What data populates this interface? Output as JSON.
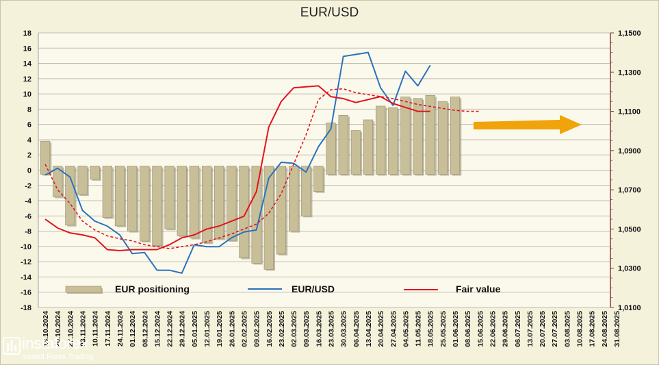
{
  "chart_data": {
    "type": "bar",
    "title": "EUR/USD",
    "x_labels": [
      "13.10.2024",
      "20.10.2024",
      "27.10.2024",
      "03.11.2024",
      "10.11.2024",
      "17.11.2024",
      "24.11.2024",
      "01.12.2024",
      "08.12.2024",
      "15.12.2024",
      "22.12.2024",
      "29.12.2024",
      "05.01.2025",
      "12.01.2025",
      "19.01.2025",
      "26.01.2025",
      "02.02.2025",
      "09.02.2025",
      "16.02.2025",
      "23.02.2025",
      "02.03.2025",
      "09.03.2025",
      "16.03.2025",
      "23.03.2025",
      "30.03.2025",
      "06.04.2025",
      "13.04.2025",
      "20.04.2025",
      "27.04.2025",
      "04.05.2025",
      "11.05.2025",
      "18.05.2025",
      "25.05.2025",
      "01.06.2025",
      "08.06.2025",
      "15.06.2025",
      "22.06.2025",
      "29.06.2025",
      "06.07.2025",
      "13.07.2025",
      "20.07.2025",
      "27.07.2025",
      "03.08.2025",
      "10.08.2025",
      "17.08.2025",
      "24.08.2025",
      "31.08.2025"
    ],
    "y_left": {
      "min": -18,
      "max": 18,
      "step": 2,
      "ticks": [
        "18",
        "16",
        "14",
        "12",
        "10",
        "8",
        "6",
        "4",
        "2",
        "0",
        "-2",
        "-4",
        "-6",
        "-8",
        "-10",
        "-12",
        "-14",
        "-16",
        "-18"
      ]
    },
    "y_right": {
      "min": 1.01,
      "max": 1.15,
      "ticks": [
        "1,1500",
        "1,1300",
        "1,1100",
        "1,0900",
        "1,0700",
        "1,0500",
        "1,0300",
        "1,0100"
      ],
      "tick_values": [
        1.15,
        1.13,
        1.11,
        1.09,
        1.07,
        1.05,
        1.03,
        1.01
      ]
    },
    "grid": "horizontal",
    "legend": "bottom",
    "series": [
      {
        "name": "EUR positioning",
        "kind": "bar",
        "axis": "left",
        "color": "#c8bf98",
        "values": [
          3.8,
          -3.5,
          -7.2,
          -3.2,
          -1.2,
          -6.2,
          -7.3,
          -8.0,
          -9.3,
          -9.9,
          -7.7,
          -8.6,
          -8.9,
          -9.5,
          -9.0,
          -9.2,
          -11.5,
          -12.2,
          -13.0,
          -11.0,
          -8.0,
          -6.0,
          -2.8,
          6.2,
          7.2,
          5.2,
          6.6,
          8.4,
          8.2,
          9.6,
          9.4,
          9.8,
          9.0,
          9.6
        ]
      },
      {
        "name": "EUR/USD",
        "kind": "line",
        "axis": "right",
        "color": "#2a72be",
        "values": [
          1.0775,
          1.081,
          1.0765,
          1.0595,
          1.054,
          1.0515,
          1.047,
          1.0375,
          1.038,
          1.029,
          1.029,
          1.0275,
          1.042,
          1.041,
          1.041,
          1.0455,
          1.0485,
          1.0495,
          1.076,
          1.084,
          1.0835,
          1.079,
          1.092,
          1.101,
          1.138,
          1.139,
          1.14,
          1.122,
          1.113,
          1.1305,
          1.123,
          1.1335
        ]
      },
      {
        "name": "Fair value",
        "kind": "line",
        "axis": "right",
        "color": "#e2141c",
        "values": [
          1.055,
          1.0505,
          1.048,
          1.047,
          1.0455,
          1.0395,
          1.039,
          1.0395,
          1.0395,
          1.0395,
          1.042,
          1.0455,
          1.047,
          1.05,
          1.0515,
          1.054,
          1.0565,
          1.069,
          1.102,
          1.115,
          1.122,
          1.1225,
          1.123,
          1.1175,
          1.1165,
          1.1145,
          1.116,
          1.1175,
          1.114,
          1.112,
          1.11,
          1.11
        ]
      },
      {
        "name": "Fair value (trend)",
        "kind": "line",
        "axis": "right",
        "style": "dashed",
        "color": "#e2141c",
        "values": [
          1.083,
          1.07,
          1.063,
          1.054,
          1.0495,
          1.0465,
          1.045,
          1.044,
          1.042,
          1.041,
          1.04,
          1.041,
          1.042,
          1.0435,
          1.0455,
          1.0475,
          1.05,
          1.0525,
          1.058,
          1.068,
          1.083,
          1.098,
          1.116,
          1.121,
          1.1215,
          1.1195,
          1.1185,
          1.1175,
          1.1165,
          1.115,
          1.1135,
          1.1125,
          1.1115,
          1.1105,
          1.11,
          1.11
        ]
      }
    ],
    "annotation": {
      "kind": "arrow",
      "direction": "right",
      "color": "#f0a30a",
      "target_right_axis": 1.1025
    }
  },
  "legend": {
    "positioning_label": "EUR positioning",
    "eurusd_label": "EUR/USD",
    "fair_label": "Fair value"
  },
  "logo": {
    "name": "instaforex",
    "tagline": "Instant Forex Trading"
  }
}
